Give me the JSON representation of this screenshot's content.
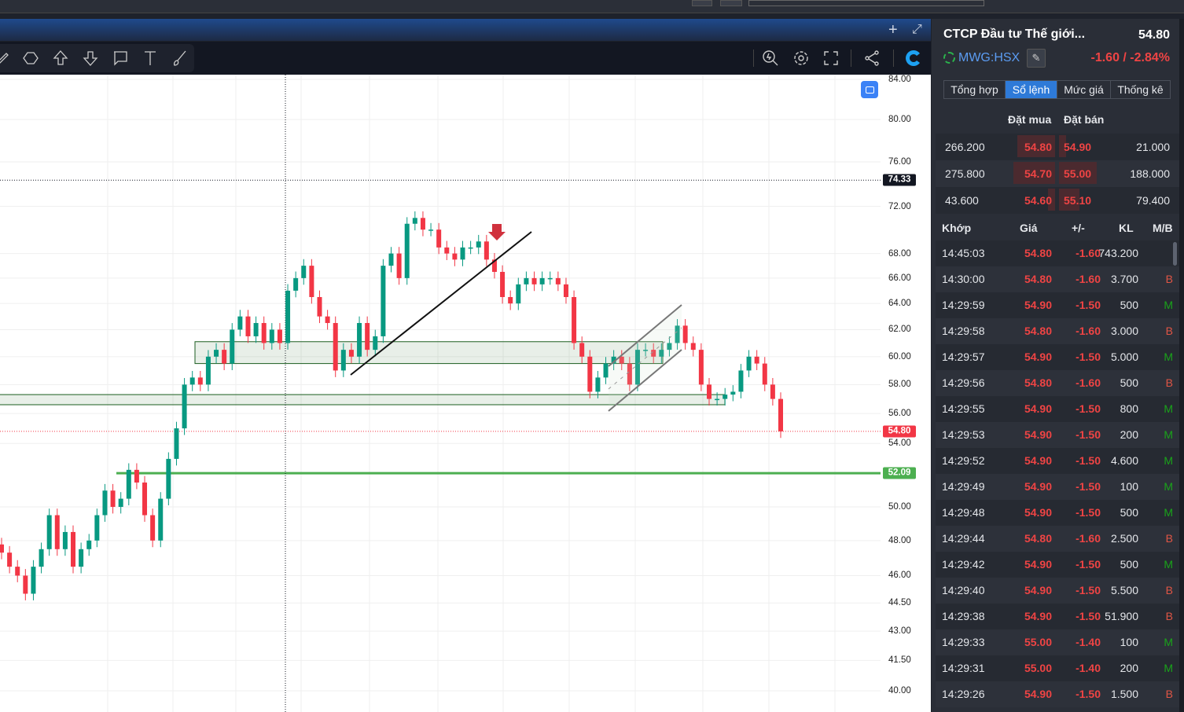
{
  "header": {
    "add_label": "+",
    "expand_icon": "expand-icon"
  },
  "toolbar": {
    "drawing_tools": [
      "pen-icon",
      "polygon-icon",
      "arrow-up-icon",
      "arrow-down-icon",
      "callout-icon",
      "text-icon",
      "brush-icon"
    ],
    "right_tools": [
      "zoom-icon",
      "gear-icon",
      "fullscreen-icon",
      "share-icon",
      "logo-icon"
    ]
  },
  "chart": {
    "scale": "log",
    "y_ticks": [
      "84.00",
      "80.00",
      "76.00",
      "72.00",
      "68.00",
      "66.00",
      "64.00",
      "62.00",
      "60.00",
      "58.00",
      "56.00",
      "54.00",
      "50.00",
      "48.00",
      "46.00",
      "44.50",
      "43.00",
      "41.50",
      "40.00"
    ],
    "crosshair_price": "74.33",
    "last_price": "54.80",
    "support_price": "52.09",
    "colors": {
      "up": "#089981",
      "down": "#f23645",
      "support": "#4caf50",
      "zone": "#1b5e20"
    },
    "closes": [
      47.3,
      46.5,
      46.0,
      45.0,
      46.5,
      47.5,
      49.5,
      47.5,
      48.5,
      46.5,
      47.5,
      48.0,
      49.5,
      51.0,
      50.0,
      50.5,
      52.3,
      51.5,
      49.5,
      48.0,
      50.5,
      53.0,
      55.0,
      58.0,
      58.5,
      58.0,
      60.0,
      60.5,
      59.5,
      62.0,
      63.0,
      61.5,
      62.5,
      61.0,
      62.0,
      61.0,
      65.0,
      66.0,
      67.0,
      64.5,
      63.0,
      62.5,
      59.0,
      60.5,
      60.0,
      62.5,
      60.5,
      61.5,
      67.0,
      68.0,
      66.0,
      70.5,
      71.0,
      70.0,
      70.0,
      68.5,
      68.0,
      67.5,
      68.5,
      68.5,
      69.0,
      67.5,
      66.5,
      64.5,
      64.0,
      65.5,
      66.0,
      65.5,
      66.0,
      66.0,
      65.5,
      64.5,
      61.0,
      60.0,
      57.5,
      58.5,
      59.5,
      60.0,
      59.5,
      58.0,
      60.5,
      60.5,
      60.0,
      60.5,
      61.0,
      62.3,
      61.0,
      60.5,
      58.0,
      57.0,
      57.0,
      57.3,
      57.5,
      59.0,
      60.0,
      59.5,
      58.0,
      57.0,
      54.8
    ]
  },
  "panel": {
    "name": "CTCP Đầu tư Thế giới...",
    "price": "54.80",
    "symbol": "MWG:HSX",
    "change": "-1.60 / -2.84%",
    "tabs": [
      "Tổng hợp",
      "Sổ lệnh",
      "Mức giá",
      "Thống kê"
    ],
    "active_tab": "Sổ lệnh",
    "orderbook": {
      "bid_label": "Đặt mua",
      "ask_label": "Đặt bán",
      "rows": [
        {
          "bid_vol": "266.200",
          "bid": "54.80",
          "ask": "54.90",
          "ask_vol": "21.000"
        },
        {
          "bid_vol": "275.800",
          "bid": "54.70",
          "ask": "55.00",
          "ask_vol": "188.000"
        },
        {
          "bid_vol": "43.600",
          "bid": "54.60",
          "ask": "55.10",
          "ask_vol": "79.400"
        }
      ]
    },
    "trades": {
      "headers": [
        "Khớp",
        "Giá",
        "+/-",
        "KL",
        "M/B"
      ],
      "rows": [
        [
          "14:45:03",
          "54.80",
          "-1.60",
          "743.200",
          ""
        ],
        [
          "14:30:00",
          "54.80",
          "-1.60",
          "3.700",
          "B"
        ],
        [
          "14:29:59",
          "54.90",
          "-1.50",
          "500",
          "M"
        ],
        [
          "14:29:58",
          "54.80",
          "-1.60",
          "3.000",
          "B"
        ],
        [
          "14:29:57",
          "54.90",
          "-1.50",
          "5.000",
          "M"
        ],
        [
          "14:29:56",
          "54.80",
          "-1.60",
          "500",
          "B"
        ],
        [
          "14:29:55",
          "54.90",
          "-1.50",
          "800",
          "M"
        ],
        [
          "14:29:53",
          "54.90",
          "-1.50",
          "200",
          "M"
        ],
        [
          "14:29:52",
          "54.90",
          "-1.50",
          "4.600",
          "M"
        ],
        [
          "14:29:49",
          "54.90",
          "-1.50",
          "100",
          "M"
        ],
        [
          "14:29:48",
          "54.90",
          "-1.50",
          "500",
          "M"
        ],
        [
          "14:29:44",
          "54.80",
          "-1.60",
          "2.500",
          "B"
        ],
        [
          "14:29:42",
          "54.90",
          "-1.50",
          "500",
          "M"
        ],
        [
          "14:29:40",
          "54.90",
          "-1.50",
          "5.500",
          "B"
        ],
        [
          "14:29:38",
          "54.90",
          "-1.50",
          "51.900",
          "B"
        ],
        [
          "14:29:33",
          "55.00",
          "-1.40",
          "100",
          "M"
        ],
        [
          "14:29:31",
          "55.00",
          "-1.40",
          "200",
          "M"
        ],
        [
          "14:29:26",
          "54.90",
          "-1.50",
          "1.500",
          "B"
        ]
      ]
    }
  }
}
